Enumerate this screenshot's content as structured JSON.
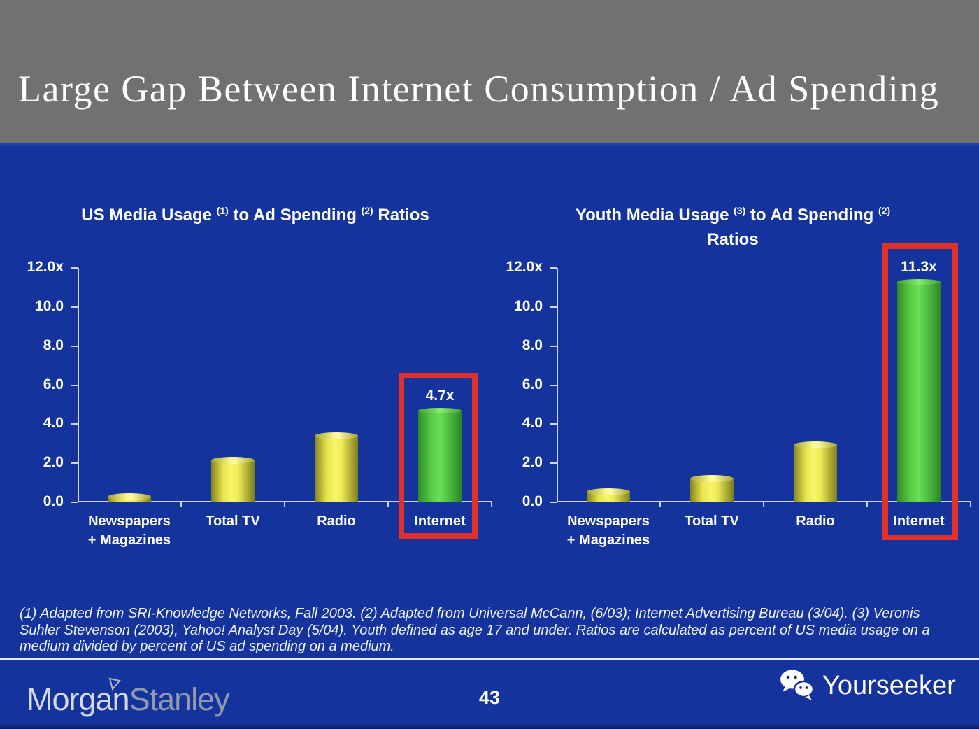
{
  "slide": {
    "title": "Large Gap Between Internet Consumption / Ad Spending",
    "page_number": "43",
    "footnote": "(1) Adapted from SRI-Knowledge Networks, Fall 2003.  (2) Adapted from Universal McCann, (6/03); Internet Advertising Bureau (3/04). (3) Veronis Suhler Stevenson (2003), Yahoo! Analyst Day (5/04).  Youth defined as age 17 and under.  Ratios are calculated as percent of US media usage on a medium divided by percent of US ad spending on a medium.",
    "brand_part1": "Morgan",
    "brand_part2": "Stanley",
    "watermark_label": "Yourseeker"
  },
  "colors": {
    "background_blue": "#15339c",
    "header_gray": "#717171",
    "bar_yellow": "#f2ef5a",
    "bar_green": "#5ecf49",
    "highlight_red": "#e0312a",
    "axis_line": "#ccd7f0"
  },
  "chart_data": [
    {
      "type": "bar",
      "title": "US Media Usage (1) to Ad Spending (2) Ratios",
      "title_segments": [
        {
          "text": "US Media Usage "
        },
        {
          "sup": "(1)"
        },
        {
          "text": " to Ad Spending "
        },
        {
          "sup": "(2)"
        },
        {
          "text": " Ratios"
        }
      ],
      "categories": [
        "Newspapers\n+ Magazines",
        "Total TV",
        "Radio",
        "Internet"
      ],
      "values": [
        0.3,
        2.15,
        3.4,
        4.7
      ],
      "bar_styles": [
        "yellow",
        "yellow",
        "yellow",
        "green"
      ],
      "data_labels": [
        null,
        null,
        null,
        "4.7x"
      ],
      "highlight_index": 3,
      "ylim": [
        0,
        12
      ],
      "ytick_labels": [
        "12.0x",
        "10.0",
        "8.0",
        "6.0",
        "4.0",
        "2.0",
        "0.0"
      ],
      "xlabel": "",
      "ylabel": "",
      "grid": false,
      "legend": null
    },
    {
      "type": "bar",
      "title": "Youth Media Usage (3) to Ad Spending (2) Ratios",
      "title_segments": [
        {
          "text": "Youth Media Usage "
        },
        {
          "sup": "(3)"
        },
        {
          "text": " to Ad Spending "
        },
        {
          "sup": "(2)"
        },
        {
          "br": true
        },
        {
          "text": "Ratios"
        }
      ],
      "categories": [
        "Newspapers\n+ Magazines",
        "Total TV",
        "Radio",
        "Internet"
      ],
      "values": [
        0.55,
        1.2,
        2.95,
        11.3
      ],
      "bar_styles": [
        "yellow",
        "yellow",
        "yellow",
        "green"
      ],
      "data_labels": [
        null,
        null,
        null,
        "11.3x"
      ],
      "highlight_index": 3,
      "ylim": [
        0,
        12
      ],
      "ytick_labels": [
        "12.0x",
        "10.0",
        "8.0",
        "6.0",
        "4.0",
        "2.0",
        "0.0"
      ],
      "xlabel": "",
      "ylabel": "",
      "grid": false,
      "legend": null
    }
  ]
}
